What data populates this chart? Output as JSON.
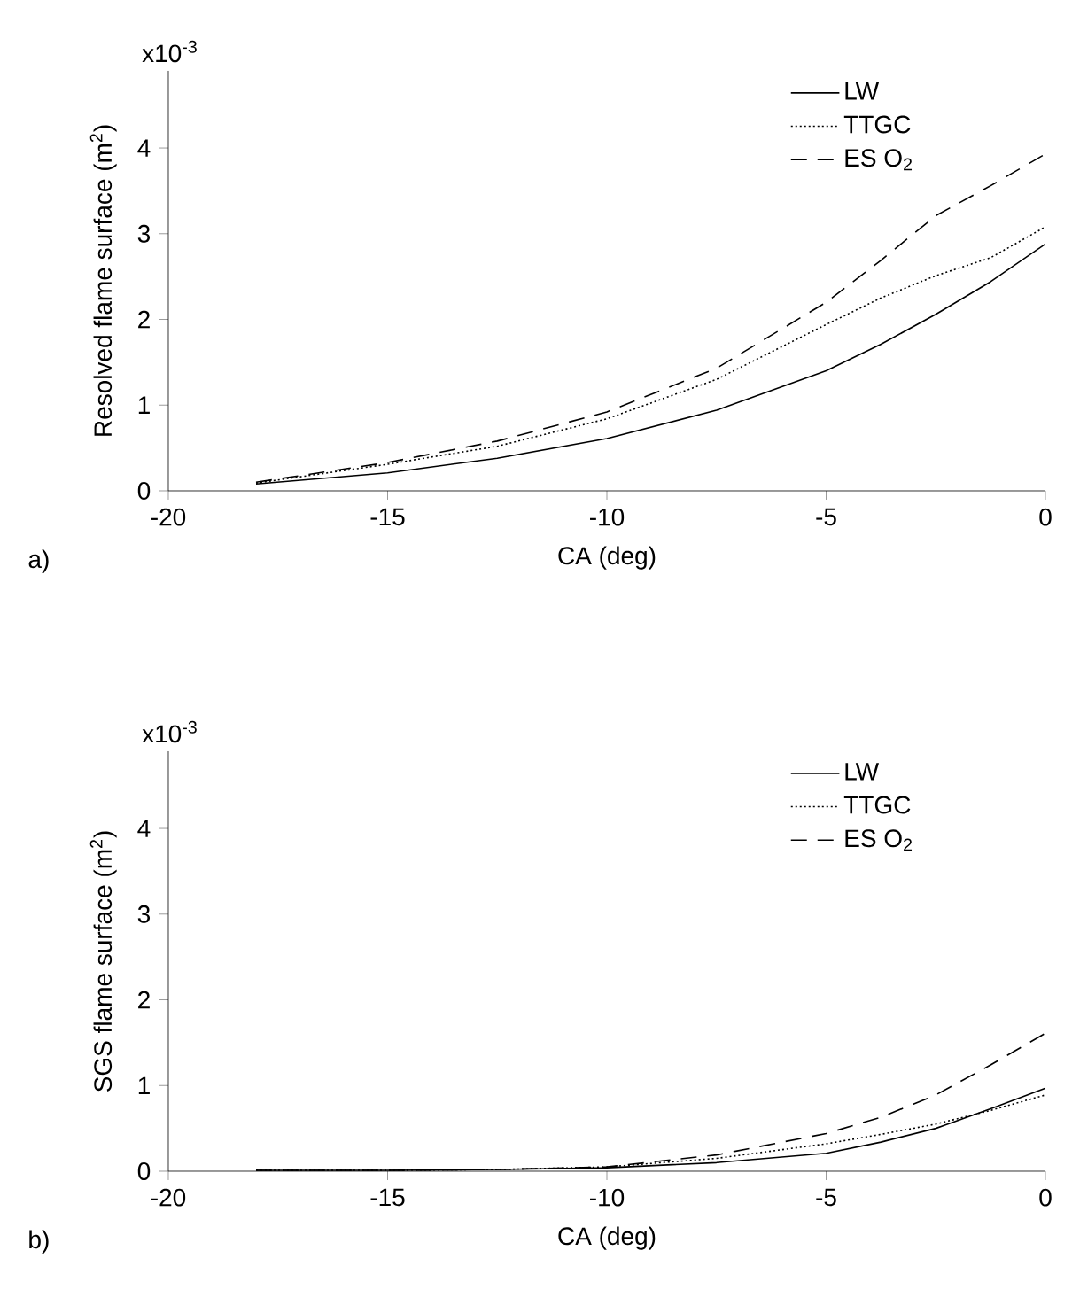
{
  "chart_data": [
    {
      "type": "line",
      "xlabel": "CA (deg)",
      "ylabel": "Resolved flame surface (m$^{2}$)",
      "annotations": [
        "x10$^{-3}$",
        "a)"
      ],
      "xlim": [
        -20,
        0
      ],
      "xticks": [
        -20,
        -15,
        -10,
        -5,
        0
      ],
      "ylim": [
        0,
        4.9
      ],
      "yticks": [
        0,
        1,
        2,
        3,
        4
      ],
      "legend": "top right",
      "grid": false,
      "marker": "none",
      "x": [
        -18,
        -15,
        -12.5,
        -10,
        -7.5,
        -5,
        -3.75,
        -2.5,
        -1.25,
        0
      ],
      "series": [
        {
          "name": "LW",
          "color": "#000000",
          "line_style": "solid",
          "values": [
            0.08,
            0.21,
            0.38,
            0.61,
            0.94,
            1.4,
            1.71,
            2.06,
            2.44,
            2.88
          ]
        },
        {
          "name": "TTGC",
          "color": "#000000",
          "line_style": "dotted",
          "values": [
            0.09,
            0.31,
            0.52,
            0.84,
            1.3,
            1.94,
            2.25,
            2.51,
            2.72,
            3.08
          ]
        },
        {
          "name": "ES O$_{2}$",
          "color": "#000000",
          "line_style": "dashed",
          "values": [
            0.1,
            0.33,
            0.58,
            0.92,
            1.43,
            2.2,
            2.69,
            3.21,
            3.56,
            3.93
          ]
        }
      ]
    },
    {
      "type": "line",
      "xlabel": "CA (deg)",
      "ylabel": "SGS flame surface (m$^{2}$)",
      "annotations": [
        "x10$^{-3}$",
        "b)"
      ],
      "xlim": [
        -20,
        0
      ],
      "xticks": [
        -20,
        -15,
        -10,
        -5,
        0
      ],
      "ylim": [
        0,
        4.9
      ],
      "yticks": [
        0,
        1,
        2,
        3,
        4
      ],
      "legend": "top right",
      "grid": false,
      "marker": "none",
      "x": [
        -18,
        -15,
        -12.5,
        -10,
        -7.5,
        -5,
        -3.75,
        -2.5,
        -1.25,
        0
      ],
      "series": [
        {
          "name": "LW",
          "color": "#000000",
          "line_style": "solid",
          "values": [
            0.01,
            0.01,
            0.02,
            0.04,
            0.1,
            0.21,
            0.34,
            0.5,
            0.73,
            0.97
          ]
        },
        {
          "name": "TTGC",
          "color": "#000000",
          "line_style": "dotted",
          "values": [
            0.01,
            0.01,
            0.02,
            0.05,
            0.15,
            0.32,
            0.43,
            0.55,
            0.71,
            0.89
          ]
        },
        {
          "name": "ES O$_{2}$",
          "color": "#000000",
          "line_style": "dashed",
          "values": [
            0.01,
            0.01,
            0.02,
            0.05,
            0.19,
            0.44,
            0.63,
            0.89,
            1.24,
            1.61
          ]
        }
      ]
    }
  ]
}
